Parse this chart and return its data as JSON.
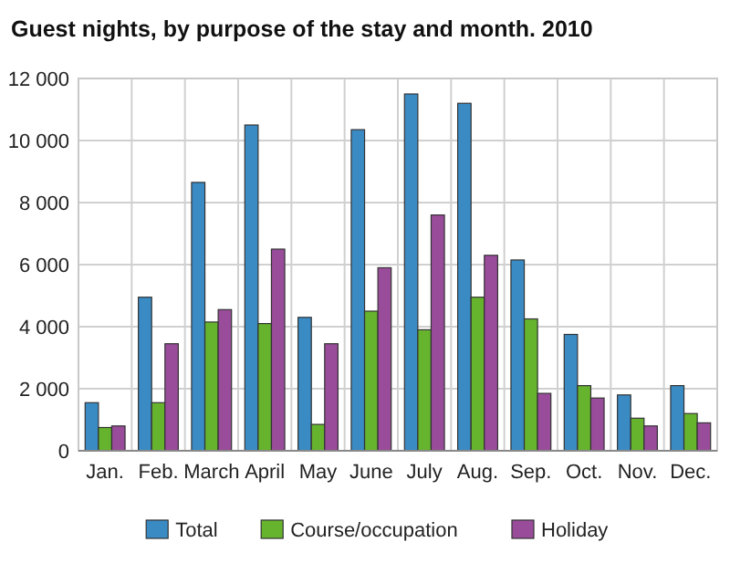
{
  "chart_data": {
    "type": "bar",
    "title": "Guest nights, by purpose of the stay and month. 2010",
    "categories": [
      "Jan.",
      "Feb.",
      "March",
      "April",
      "May",
      "June",
      "July",
      "Aug.",
      "Sep.",
      "Oct.",
      "Nov.",
      "Dec."
    ],
    "series": [
      {
        "name": "Total",
        "color": "#3a8bc4",
        "values": [
          1550,
          4950,
          8650,
          10500,
          4300,
          10350,
          11500,
          11200,
          6150,
          3750,
          1800,
          2100
        ]
      },
      {
        "name": "Course/occupation",
        "color": "#66b32e",
        "values": [
          750,
          1550,
          4150,
          4100,
          850,
          4500,
          3900,
          4950,
          4250,
          2100,
          1050,
          1200
        ]
      },
      {
        "name": "Holiday",
        "color": "#994c99",
        "values": [
          800,
          3450,
          4550,
          6500,
          3450,
          5900,
          7600,
          6300,
          1850,
          1700,
          800,
          900
        ]
      }
    ],
    "ylim": [
      0,
      12000
    ],
    "yticks": [
      {
        "value": 0,
        "label": "0"
      },
      {
        "value": 2000,
        "label": "2 000"
      },
      {
        "value": 4000,
        "label": "4 000"
      },
      {
        "value": 6000,
        "label": "6 000"
      },
      {
        "value": 8000,
        "label": "8 000"
      },
      {
        "value": 10000,
        "label": "10 000"
      },
      {
        "value": 12000,
        "label": "12 000"
      }
    ],
    "grid": true,
    "legend": "bottom"
  }
}
